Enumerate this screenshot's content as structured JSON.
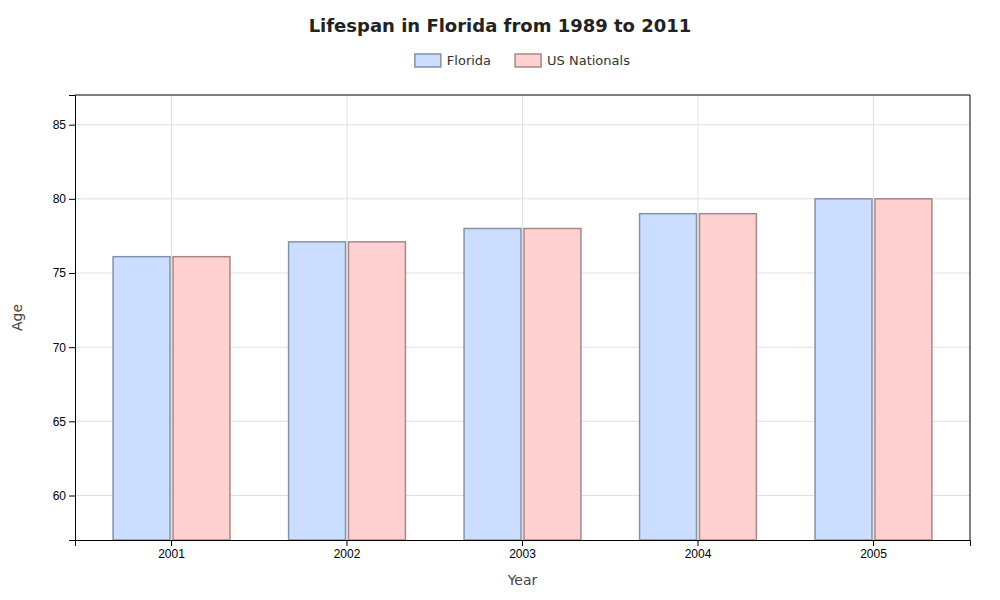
{
  "chart_data": {
    "type": "bar",
    "title": "Lifespan in Florida from 1989 to 2011",
    "x_label": "Year",
    "y_label": "Age",
    "categories": [
      "2001",
      "2002",
      "2003",
      "2004",
      "2005"
    ],
    "series": [
      {
        "name": "Florida",
        "color": "#ccdeff",
        "values": [
          76.1,
          77.1,
          78.0,
          79.0,
          80.0
        ]
      },
      {
        "name": "US Nationals",
        "color": "#ffd0d0",
        "values": [
          76.1,
          77.1,
          78.0,
          79.0,
          80.0
        ]
      }
    ],
    "ylim": [
      57,
      87
    ],
    "yticks": [
      60,
      65,
      70,
      75,
      80,
      85
    ],
    "grid": true,
    "legend": "top"
  }
}
